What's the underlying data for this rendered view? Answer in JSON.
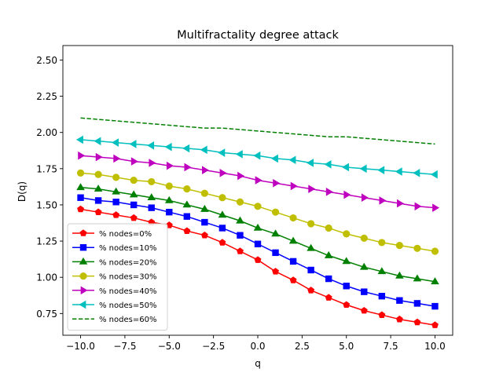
{
  "chart_data": {
    "type": "line",
    "title": "Multifractality degree attack",
    "xlabel": "q",
    "ylabel": "D(q)",
    "xlim": [
      -11,
      11
    ],
    "ylim": [
      0.6,
      2.6
    ],
    "xticks": [
      -10,
      -7.5,
      -5,
      -2.5,
      0,
      2.5,
      5,
      7.5,
      10
    ],
    "xtick_labels": [
      "−10.0",
      "−7.5",
      "−5.0",
      "−2.5",
      "0.0",
      "2.5",
      "5.0",
      "7.5",
      "10.0"
    ],
    "yticks": [
      0.75,
      1.0,
      1.25,
      1.5,
      1.75,
      2.0,
      2.25,
      2.5
    ],
    "ytick_labels": [
      "0.75",
      "1.00",
      "1.25",
      "1.50",
      "1.75",
      "2.00",
      "2.25",
      "2.50"
    ],
    "grid": false,
    "legend_position": "lower-left",
    "x": [
      -10,
      -9,
      -8,
      -7,
      -6,
      -5,
      -4,
      -3,
      -2,
      -1,
      0,
      1,
      2,
      3,
      4,
      5,
      6,
      7,
      8,
      9,
      10
    ],
    "series": [
      {
        "name": "% nodes=0%",
        "color": "#ff0000",
        "marker": "pentagon",
        "linestyle": "solid",
        "values": [
          1.47,
          1.45,
          1.43,
          1.41,
          1.38,
          1.36,
          1.32,
          1.29,
          1.24,
          1.18,
          1.12,
          1.04,
          0.98,
          0.91,
          0.86,
          0.81,
          0.77,
          0.74,
          0.71,
          0.69,
          0.67
        ]
      },
      {
        "name": "% nodes=10%",
        "color": "#0000ff",
        "marker": "square",
        "linestyle": "solid",
        "values": [
          1.55,
          1.53,
          1.52,
          1.5,
          1.48,
          1.45,
          1.42,
          1.38,
          1.34,
          1.29,
          1.23,
          1.17,
          1.11,
          1.05,
          0.99,
          0.94,
          0.9,
          0.87,
          0.84,
          0.82,
          0.8
        ]
      },
      {
        "name": "% nodes=20%",
        "color": "#008000",
        "marker": "triangle-up",
        "linestyle": "solid",
        "values": [
          1.62,
          1.61,
          1.59,
          1.57,
          1.55,
          1.53,
          1.5,
          1.47,
          1.43,
          1.39,
          1.34,
          1.3,
          1.25,
          1.2,
          1.15,
          1.11,
          1.07,
          1.04,
          1.01,
          0.99,
          0.97
        ]
      },
      {
        "name": "% nodes=30%",
        "color": "#bfbf00",
        "marker": "circle",
        "linestyle": "solid",
        "values": [
          1.72,
          1.71,
          1.69,
          1.67,
          1.66,
          1.63,
          1.61,
          1.58,
          1.55,
          1.52,
          1.49,
          1.45,
          1.41,
          1.37,
          1.34,
          1.3,
          1.27,
          1.24,
          1.22,
          1.2,
          1.18
        ]
      },
      {
        "name": "% nodes=40%",
        "color": "#bf00bf",
        "marker": "triangle-right",
        "linestyle": "solid",
        "values": [
          1.84,
          1.83,
          1.82,
          1.8,
          1.79,
          1.77,
          1.76,
          1.74,
          1.72,
          1.7,
          1.67,
          1.65,
          1.63,
          1.61,
          1.59,
          1.57,
          1.55,
          1.53,
          1.51,
          1.49,
          1.48
        ]
      },
      {
        "name": "% nodes=50%",
        "color": "#00bfbf",
        "marker": "triangle-left",
        "linestyle": "solid",
        "values": [
          1.95,
          1.94,
          1.93,
          1.92,
          1.91,
          1.9,
          1.89,
          1.88,
          1.86,
          1.85,
          1.84,
          1.82,
          1.81,
          1.79,
          1.78,
          1.76,
          1.75,
          1.74,
          1.73,
          1.72,
          1.71
        ]
      },
      {
        "name": "% nodes=60%",
        "color": "#008000",
        "marker": "none",
        "linestyle": "dashed",
        "values": [
          2.1,
          2.09,
          2.08,
          2.07,
          2.06,
          2.05,
          2.04,
          2.03,
          2.03,
          2.02,
          2.01,
          2.0,
          1.99,
          1.98,
          1.97,
          1.97,
          1.96,
          1.95,
          1.94,
          1.93,
          1.92
        ]
      }
    ]
  }
}
